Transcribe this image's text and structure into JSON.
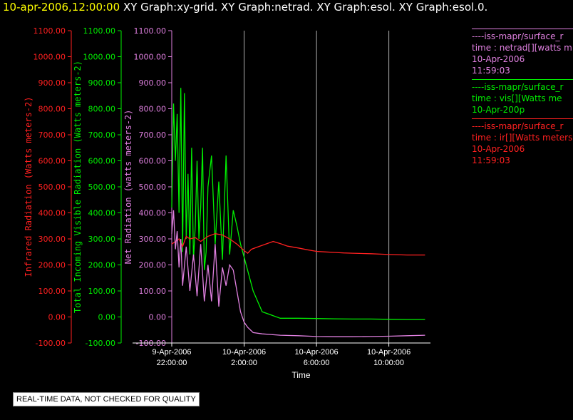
{
  "header": {
    "timestamp": "10-apr-2006,12:00:00",
    "graphs": "XY Graph:xy-grid.  XY Graph:netrad.  XY Graph:esol.  XY Graph:esol.0."
  },
  "notice": "REAL-TIME DATA, NOT CHECKED FOR QUALITY",
  "colors": {
    "infrared": "#ff2020",
    "visible": "#00ee00",
    "net": "#e080e0",
    "grid": "#b0b0b0",
    "axis": "#ffffff"
  },
  "legend": [
    {
      "name": "netrad",
      "color": "#e080e0",
      "lines": [
        "----iss-mapr/surface_r",
        "time : netrad[][watts m",
        "10-Apr-2006",
        "11:59:03"
      ]
    },
    {
      "name": "vis",
      "color": "#00ee00",
      "lines": [
        "----iss-mapr/surface_r",
        "time : vis[][Watts me",
        "10-Apr-200p"
      ]
    },
    {
      "name": "ir",
      "color": "#ff2020",
      "lines": [
        "----iss-mapr/surface_r",
        "time : ir[][Watts meters",
        "10-Apr-2006",
        "11:59:03"
      ]
    }
  ],
  "chart_data": {
    "type": "line",
    "xlabel": "Time",
    "x_ticks": [
      {
        "x": 22,
        "label": [
          "9-Apr-2006",
          "22:00:00"
        ]
      },
      {
        "x": 26,
        "label": [
          "10-Apr-2006",
          "2:00:00"
        ]
      },
      {
        "x": 30,
        "label": [
          "10-Apr-2006",
          "6:00:00"
        ]
      },
      {
        "x": 34,
        "label": [
          "10-Apr-2006",
          "10:00:00"
        ]
      }
    ],
    "xlim": [
      22,
      36.3
    ],
    "ylim": [
      -100,
      1100
    ],
    "gridlines_x": [
      26,
      30,
      34
    ],
    "y_axes": [
      {
        "name": "infrared",
        "label": "Infrared Radiation (Watts meters-2)",
        "color": "#ff2020",
        "ticks": [
          "-100.00",
          "0.00",
          "100.00",
          "200.00",
          "300.00",
          "400.00",
          "500.00",
          "600.00",
          "700.00",
          "800.00",
          "900.00",
          "1000.00",
          "1100.00"
        ]
      },
      {
        "name": "visible",
        "label": "Total Incoming Visible Radiation (Watts meters-2)",
        "color": "#00ee00",
        "ticks": [
          "-100.00",
          "0.00",
          "100.00",
          "200.00",
          "300.00",
          "400.00",
          "500.00",
          "600.00",
          "700.00",
          "800.00",
          "900.00",
          "1000.00",
          "1100.00"
        ]
      },
      {
        "name": "net",
        "label": "Net Radiation (watts meters-2)",
        "color": "#e080e0",
        "ticks": [
          "-100.00",
          "0.00",
          "100.00",
          "200.00",
          "300.00",
          "400.00",
          "500.00",
          "600.00",
          "700.00",
          "800.00",
          "900.00",
          "1000.00",
          "1100.00"
        ]
      }
    ],
    "series": [
      {
        "name": "visible",
        "color": "#00ee00",
        "x": [
          22.0,
          22.1,
          22.2,
          22.3,
          22.4,
          22.5,
          22.6,
          22.7,
          22.8,
          22.9,
          23.0,
          23.1,
          23.2,
          23.3,
          23.4,
          23.5,
          23.6,
          23.7,
          23.8,
          23.9,
          24.0,
          24.2,
          24.4,
          24.6,
          24.8,
          25.0,
          25.2,
          25.4,
          25.6,
          25.8,
          26.0,
          26.5,
          27.0,
          28.0,
          29.0,
          30.0,
          31.0,
          32.0,
          33.0,
          34.0,
          35.0,
          36.0
        ],
        "y": [
          420,
          820,
          600,
          780,
          400,
          880,
          250,
          860,
          300,
          550,
          240,
          650,
          220,
          350,
          600,
          300,
          420,
          650,
          180,
          250,
          500,
          620,
          280,
          520,
          220,
          620,
          240,
          410,
          350,
          280,
          230,
          100,
          20,
          -5,
          -5,
          -6,
          -7,
          -8,
          -8,
          -9,
          -10,
          -10
        ]
      },
      {
        "name": "infrared",
        "color": "#ff2020",
        "x": [
          22.0,
          22.2,
          22.4,
          22.6,
          22.8,
          23.0,
          23.3,
          23.6,
          24.0,
          24.4,
          24.8,
          25.2,
          25.6,
          26.0,
          26.2,
          26.4,
          26.8,
          27.2,
          27.6,
          28.0,
          28.4,
          29.0,
          29.5,
          30.0,
          30.5,
          31.0,
          31.5,
          32.0,
          33.0,
          34.0,
          35.0,
          36.0
        ],
        "y": [
          280,
          290,
          300,
          270,
          310,
          300,
          305,
          290,
          310,
          320,
          315,
          300,
          280,
          255,
          245,
          260,
          270,
          280,
          290,
          282,
          272,
          265,
          258,
          252,
          250,
          248,
          246,
          245,
          243,
          240,
          238,
          238
        ]
      },
      {
        "name": "net",
        "color": "#e080e0",
        "x": [
          22.0,
          22.1,
          22.2,
          22.3,
          22.4,
          22.5,
          22.6,
          22.8,
          23.0,
          23.2,
          23.4,
          23.6,
          23.8,
          24.0,
          24.2,
          24.4,
          24.6,
          24.8,
          25.0,
          25.2,
          25.4,
          25.6,
          25.8,
          26.0,
          26.2,
          26.5,
          27.0,
          28.0,
          29.0,
          30.0,
          31.0,
          32.0,
          33.0,
          34.0,
          35.0,
          36.0
        ],
        "y": [
          320,
          410,
          260,
          330,
          190,
          300,
          120,
          270,
          100,
          240,
          80,
          280,
          60,
          200,
          60,
          280,
          40,
          190,
          120,
          200,
          180,
          100,
          20,
          -20,
          -40,
          -60,
          -65,
          -70,
          -72,
          -75,
          -76,
          -76,
          -75,
          -74,
          -72,
          -70
        ]
      }
    ]
  }
}
